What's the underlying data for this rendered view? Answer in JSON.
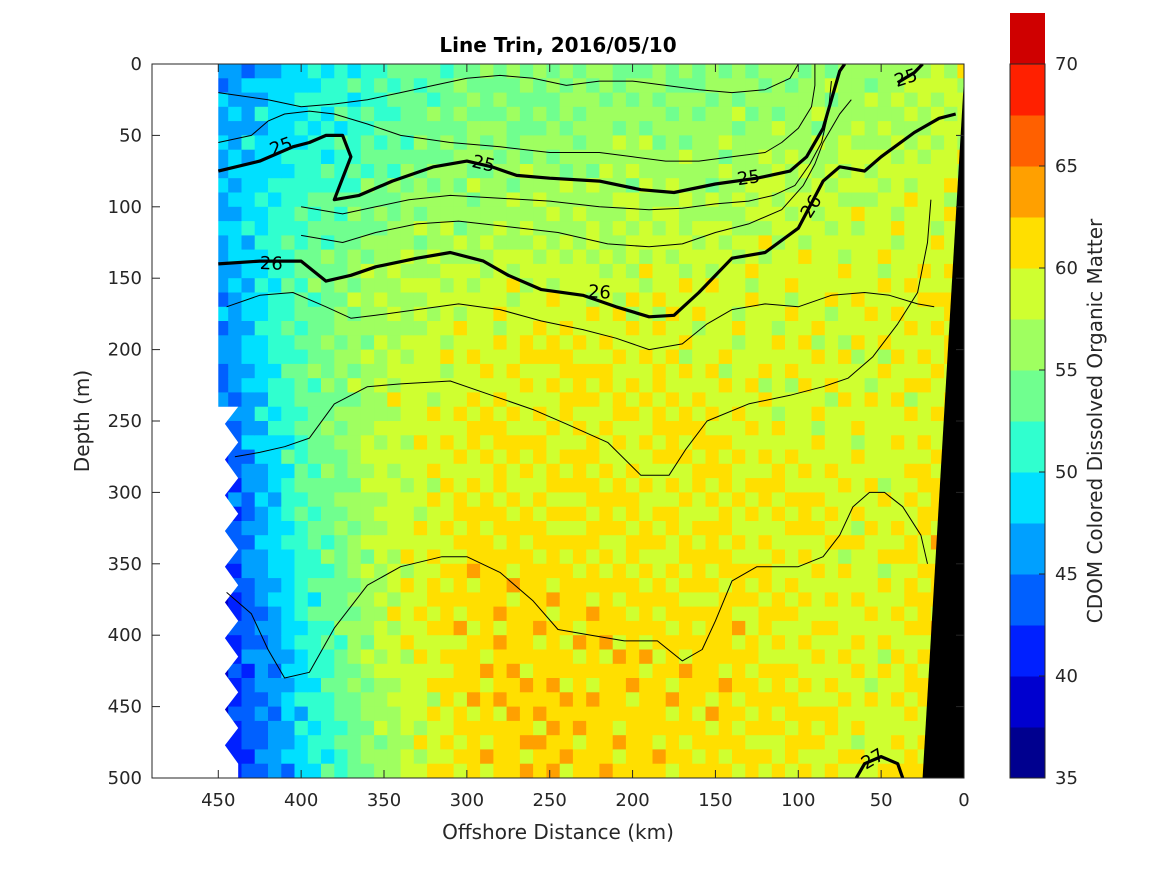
{
  "chart_data": {
    "type": "heatmap",
    "title": "Line Trin, 2016/05/10",
    "xlabel": "Offshore Distance (km)",
    "ylabel": "Depth (m)",
    "colorbar_label": "CDOM Colored Dissolved Organic Matter",
    "xlim": [
      490,
      0
    ],
    "ylim": [
      500,
      0
    ],
    "x_ticks": [
      "450",
      "400",
      "350",
      "300",
      "250",
      "200",
      "150",
      "100",
      "50",
      "0"
    ],
    "y_ticks": [
      "0",
      "50",
      "100",
      "150",
      "200",
      "250",
      "300",
      "350",
      "400",
      "450",
      "500"
    ],
    "colorbar": {
      "min": 35,
      "max": 70,
      "step": 2.5,
      "ticks": [
        "35",
        "40",
        "45",
        "50",
        "55",
        "60",
        "65",
        "70"
      ],
      "colors": [
        "#00008f",
        "#0000cf",
        "#0020ff",
        "#0060ff",
        "#00a0ff",
        "#00e0ff",
        "#30ffcf",
        "#70ff8f",
        "#9fff60",
        "#cfff30",
        "#ffdf00",
        "#ffa000",
        "#ff6000",
        "#ff2000",
        "#cf0000"
      ]
    },
    "depth_levels": [
      0,
      50,
      100,
      150,
      200,
      250,
      300,
      350,
      400,
      450,
      500
    ],
    "distance_columns": [
      450,
      400,
      350,
      300,
      250,
      200,
      150,
      100,
      50,
      10
    ],
    "cdom_grid": [
      [
        45,
        49,
        52,
        54,
        55,
        55,
        55,
        55,
        56,
        58
      ],
      [
        47,
        50,
        53,
        55,
        55,
        56,
        56,
        57,
        57,
        58
      ],
      [
        47,
        52,
        55,
        56,
        57,
        57,
        57,
        58,
        58,
        59
      ],
      [
        46,
        53,
        57,
        58,
        58,
        58,
        59,
        59,
        59,
        60
      ],
      [
        45,
        53,
        57,
        59,
        60,
        60,
        59,
        59,
        59,
        60
      ],
      [
        44,
        53,
        58,
        60,
        60,
        60,
        60,
        59,
        59,
        60
      ],
      [
        41,
        52,
        58,
        60,
        60,
        60,
        60,
        60,
        59,
        61
      ],
      [
        41,
        51,
        58,
        61,
        61,
        60,
        60,
        60,
        59,
        61
      ],
      [
        40,
        50,
        58,
        61,
        61,
        61,
        61,
        60,
        59,
        61
      ],
      [
        40,
        49,
        57,
        61,
        62,
        61,
        61,
        60,
        59,
        61
      ],
      [
        40,
        48,
        56,
        61,
        62,
        61,
        61,
        60,
        59,
        61
      ]
    ],
    "sigma_contours": [
      {
        "label": "25",
        "bold": true,
        "points": [
          [
            450,
            75
          ],
          [
            425,
            68
          ],
          [
            405,
            58
          ],
          [
            395,
            55
          ],
          [
            385,
            50
          ],
          [
            375,
            50
          ],
          [
            370,
            65
          ],
          [
            375,
            80
          ],
          [
            380,
            95
          ],
          [
            365,
            92
          ],
          [
            345,
            82
          ],
          [
            320,
            72
          ],
          [
            300,
            68
          ],
          [
            285,
            72
          ],
          [
            270,
            78
          ],
          [
            250,
            80
          ],
          [
            220,
            82
          ],
          [
            195,
            88
          ],
          [
            175,
            90
          ],
          [
            150,
            84
          ],
          [
            125,
            80
          ],
          [
            105,
            75
          ],
          [
            95,
            65
          ],
          [
            85,
            45
          ],
          [
            80,
            25
          ],
          [
            75,
            5
          ],
          [
            72,
            0
          ]
        ]
      },
      {
        "label": "25",
        "bold": true,
        "points": [
          [
            40,
            13
          ],
          [
            30,
            6
          ],
          [
            25,
            0
          ]
        ]
      },
      {
        "label": "26",
        "bold": true,
        "points": [
          [
            450,
            140
          ],
          [
            425,
            138
          ],
          [
            400,
            138
          ],
          [
            385,
            152
          ],
          [
            370,
            148
          ],
          [
            355,
            142
          ],
          [
            330,
            136
          ],
          [
            310,
            132
          ],
          [
            290,
            138
          ],
          [
            275,
            148
          ],
          [
            255,
            158
          ],
          [
            230,
            162
          ],
          [
            210,
            170
          ],
          [
            190,
            177
          ],
          [
            175,
            176
          ],
          [
            160,
            160
          ],
          [
            140,
            136
          ],
          [
            120,
            132
          ],
          [
            100,
            115
          ],
          [
            85,
            82
          ],
          [
            75,
            72
          ],
          [
            60,
            75
          ],
          [
            50,
            65
          ],
          [
            30,
            48
          ],
          [
            15,
            38
          ],
          [
            5,
            35
          ]
        ]
      },
      {
        "label": "27",
        "bold": true,
        "points": [
          [
            65,
            500
          ],
          [
            60,
            490
          ],
          [
            50,
            485
          ],
          [
            40,
            490
          ],
          [
            37,
            500
          ]
        ]
      },
      {
        "label": "",
        "bold": false,
        "points": [
          [
            450,
            20
          ],
          [
            420,
            25
          ],
          [
            400,
            30
          ],
          [
            380,
            28
          ],
          [
            360,
            25
          ],
          [
            340,
            20
          ],
          [
            320,
            15
          ],
          [
            300,
            10
          ],
          [
            280,
            8
          ],
          [
            260,
            10
          ],
          [
            240,
            15
          ],
          [
            220,
            12
          ],
          [
            200,
            12
          ],
          [
            180,
            15
          ],
          [
            160,
            18
          ],
          [
            140,
            20
          ],
          [
            120,
            18
          ],
          [
            105,
            10
          ],
          [
            100,
            0
          ]
        ]
      },
      {
        "label": "",
        "bold": false,
        "points": [
          [
            450,
            55
          ],
          [
            430,
            50
          ],
          [
            420,
            40
          ],
          [
            410,
            35
          ],
          [
            395,
            33
          ],
          [
            380,
            35
          ],
          [
            360,
            42
          ],
          [
            340,
            50
          ],
          [
            310,
            55
          ],
          [
            280,
            58
          ],
          [
            250,
            62
          ],
          [
            220,
            62
          ],
          [
            200,
            65
          ],
          [
            180,
            68
          ],
          [
            160,
            68
          ],
          [
            140,
            65
          ],
          [
            120,
            62
          ],
          [
            110,
            55
          ],
          [
            100,
            45
          ],
          [
            92,
            30
          ],
          [
            90,
            15
          ],
          [
            90,
            0
          ]
        ]
      },
      {
        "label": "",
        "bold": false,
        "points": [
          [
            400,
            100
          ],
          [
            375,
            105
          ],
          [
            355,
            100
          ],
          [
            335,
            95
          ],
          [
            310,
            92
          ],
          [
            280,
            94
          ],
          [
            250,
            96
          ],
          [
            220,
            100
          ],
          [
            190,
            102
          ],
          [
            170,
            101
          ],
          [
            150,
            98
          ],
          [
            130,
            96
          ],
          [
            115,
            92
          ],
          [
            102,
            85
          ],
          [
            93,
            70
          ],
          [
            86,
            55
          ],
          [
            82,
            35
          ],
          [
            80,
            12
          ]
        ]
      },
      {
        "label": "",
        "bold": false,
        "points": [
          [
            400,
            120
          ],
          [
            375,
            125
          ],
          [
            355,
            118
          ],
          [
            330,
            112
          ],
          [
            305,
            110
          ],
          [
            275,
            114
          ],
          [
            245,
            118
          ],
          [
            215,
            126
          ],
          [
            190,
            128
          ],
          [
            170,
            126
          ],
          [
            150,
            118
          ],
          [
            130,
            112
          ],
          [
            110,
            102
          ],
          [
            97,
            85
          ],
          [
            90,
            70
          ],
          [
            85,
            55
          ],
          [
            75,
            35
          ],
          [
            68,
            25
          ]
        ]
      },
      {
        "label": "",
        "bold": false,
        "points": [
          [
            445,
            170
          ],
          [
            425,
            162
          ],
          [
            405,
            160
          ],
          [
            385,
            170
          ],
          [
            370,
            178
          ],
          [
            355,
            176
          ],
          [
            330,
            172
          ],
          [
            305,
            168
          ],
          [
            280,
            172
          ],
          [
            255,
            180
          ],
          [
            230,
            186
          ],
          [
            210,
            192
          ],
          [
            190,
            200
          ],
          [
            170,
            196
          ],
          [
            155,
            182
          ],
          [
            140,
            172
          ],
          [
            120,
            168
          ],
          [
            100,
            170
          ],
          [
            80,
            162
          ],
          [
            60,
            160
          ],
          [
            45,
            162
          ],
          [
            28,
            168
          ],
          [
            18,
            170
          ]
        ]
      },
      {
        "label": "",
        "bold": false,
        "points": [
          [
            440,
            275
          ],
          [
            425,
            272
          ],
          [
            410,
            268
          ],
          [
            395,
            262
          ],
          [
            380,
            238
          ],
          [
            360,
            226
          ],
          [
            340,
            224
          ],
          [
            310,
            222
          ],
          [
            285,
            232
          ],
          [
            260,
            242
          ],
          [
            240,
            252
          ],
          [
            215,
            265
          ],
          [
            195,
            288
          ],
          [
            178,
            288
          ],
          [
            168,
            270
          ],
          [
            155,
            250
          ],
          [
            130,
            238
          ],
          [
            105,
            232
          ],
          [
            85,
            226
          ],
          [
            70,
            220
          ],
          [
            55,
            205
          ],
          [
            40,
            182
          ],
          [
            28,
            160
          ],
          [
            22,
            125
          ],
          [
            20,
            95
          ]
        ]
      },
      {
        "label": "",
        "bold": false,
        "points": [
          [
            445,
            370
          ],
          [
            430,
            385
          ],
          [
            420,
            410
          ],
          [
            410,
            430
          ],
          [
            395,
            426
          ],
          [
            380,
            395
          ],
          [
            360,
            365
          ],
          [
            340,
            352
          ],
          [
            315,
            345
          ],
          [
            300,
            345
          ],
          [
            280,
            356
          ],
          [
            260,
            376
          ],
          [
            245,
            396
          ],
          [
            225,
            400
          ],
          [
            205,
            404
          ],
          [
            185,
            404
          ],
          [
            170,
            418
          ],
          [
            158,
            410
          ],
          [
            150,
            390
          ],
          [
            140,
            362
          ],
          [
            125,
            352
          ],
          [
            100,
            352
          ],
          [
            85,
            345
          ],
          [
            75,
            330
          ],
          [
            67,
            310
          ],
          [
            57,
            300
          ],
          [
            48,
            300
          ],
          [
            37,
            310
          ],
          [
            26,
            330
          ],
          [
            22,
            350
          ]
        ]
      }
    ],
    "seafloor_label": "",
    "missing_data": "white"
  }
}
